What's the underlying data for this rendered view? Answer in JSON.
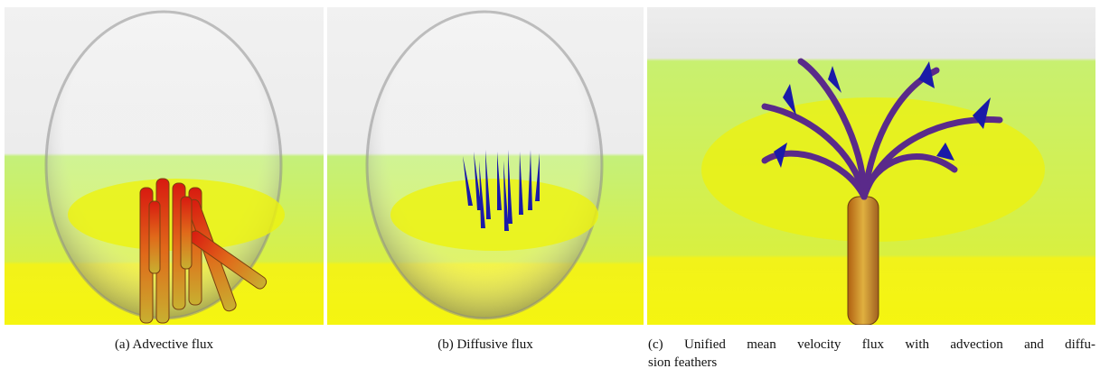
{
  "panels": [
    {
      "caption": "(a) Advective flux"
    },
    {
      "caption": "(b) Diffusive flux"
    },
    {
      "caption_lines": [
        "(c) Unified mean velocity flux with advection and diffu-",
        "sion feathers"
      ]
    }
  ]
}
